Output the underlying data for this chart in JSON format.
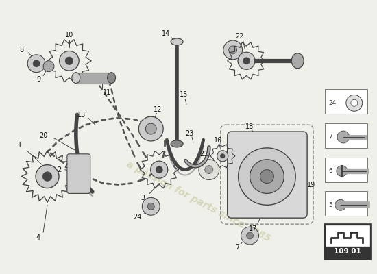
{
  "bg_color": "#f0f0eb",
  "watermark_text": "a passion for parts since 1985",
  "watermark_color": "#c8c8a0",
  "part_number": "109 01",
  "line_color": "#2a2a2a",
  "chain_color": "#555555",
  "component_color": "#444444",
  "light_gray": "#cccccc",
  "mid_gray": "#aaaaaa",
  "dark_gray": "#888888"
}
